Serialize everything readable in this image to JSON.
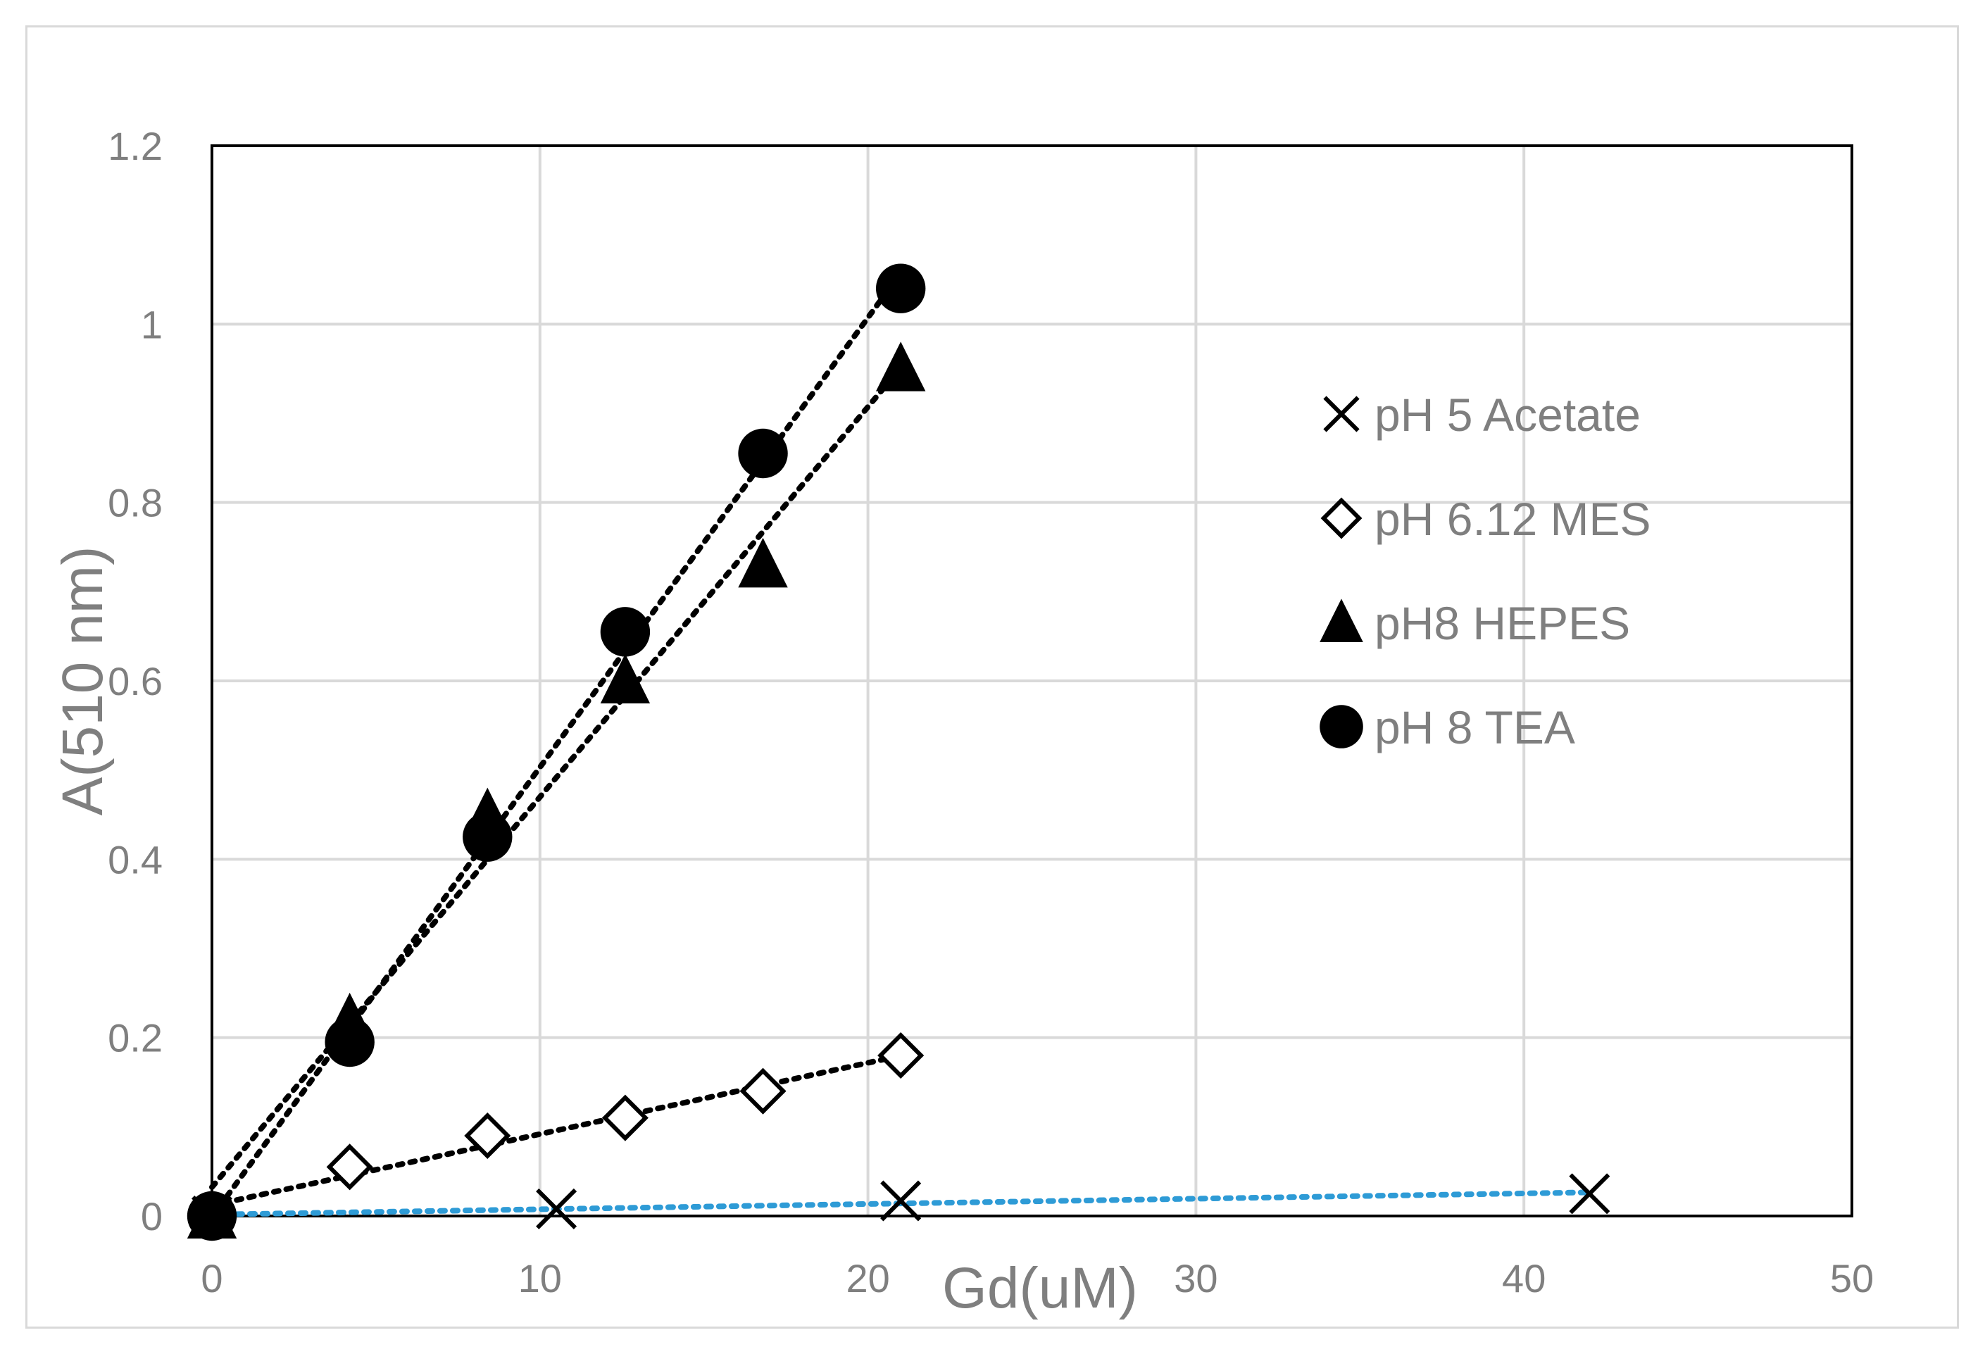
{
  "chart_data": {
    "type": "scatter",
    "title": "",
    "xlabel": "Gd(uM)",
    "ylabel": "A(510 nm)",
    "xlim": [
      0,
      50
    ],
    "ylim": [
      0,
      1.2
    ],
    "x_ticks": [
      "0",
      "10",
      "20",
      "30",
      "40",
      "50"
    ],
    "y_ticks": [
      "0",
      "0.2",
      "0.4",
      "0.6",
      "0.8",
      "1",
      "1.2"
    ],
    "grid": true,
    "legend_position": "right",
    "series": [
      {
        "name": "pH 5 Acetate",
        "marker": "x",
        "trendline": "linear dotted",
        "trendline_color": "#2e9bd6",
        "points": [
          [
            0,
            0
          ],
          [
            10.5,
            0.008
          ],
          [
            21,
            0.017
          ],
          [
            42,
            0.025
          ]
        ]
      },
      {
        "name": "pH 6.12 MES",
        "marker": "diamond-open",
        "trendline": "linear dotted",
        "trendline_color": "#000000",
        "points": [
          [
            0,
            0
          ],
          [
            4.2,
            0.055
          ],
          [
            8.4,
            0.09
          ],
          [
            12.6,
            0.11
          ],
          [
            16.8,
            0.14
          ],
          [
            21,
            0.18
          ]
        ]
      },
      {
        "name": "pH8 HEPES",
        "marker": "triangle",
        "trendline": "linear dotted",
        "trendline_color": "#000000",
        "points": [
          [
            0,
            0
          ],
          [
            4.2,
            0.22
          ],
          [
            8.4,
            0.45
          ],
          [
            12.6,
            0.6
          ],
          [
            16.8,
            0.73
          ],
          [
            21,
            0.95
          ]
        ]
      },
      {
        "name": "pH 8 TEA",
        "marker": "circle",
        "trendline": "linear dotted",
        "trendline_color": "#000000",
        "points": [
          [
            0,
            0
          ],
          [
            4.2,
            0.195
          ],
          [
            8.4,
            0.425
          ],
          [
            12.6,
            0.655
          ],
          [
            16.8,
            0.855
          ],
          [
            21,
            1.04
          ]
        ]
      }
    ]
  }
}
